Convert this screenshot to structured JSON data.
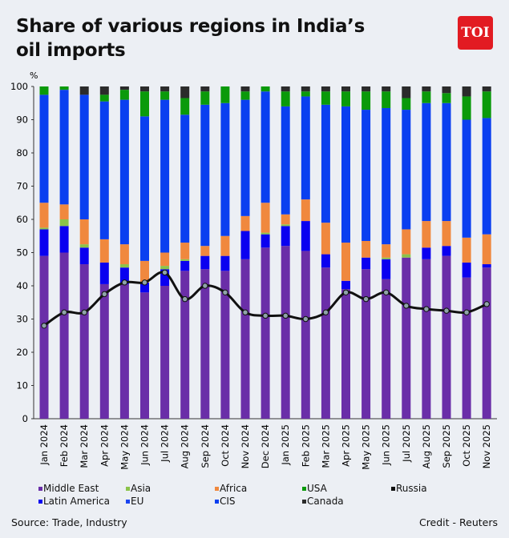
{
  "title": "Share of various regions in India’s oil imports",
  "logo_text": "TOI",
  "source": "Source: Trade, Industry",
  "credit": "Credit - Reuters",
  "chart_data": {
    "type": "bar",
    "stacked": true,
    "ylabel": "%",
    "ylim": [
      0,
      100
    ],
    "yticks": [
      0,
      10,
      20,
      30,
      40,
      50,
      60,
      70,
      80,
      90,
      100
    ],
    "grid": false,
    "legend_placement": "bottom",
    "categories": [
      "Jan 2024",
      "Feb 2024",
      "Mar 2024",
      "Apr 2024",
      "May 2024",
      "Jun 2024",
      "Jul 2024",
      "Aug 2024",
      "Sep 2024",
      "Oct 2024",
      "Nov 2024",
      "Dec 2024",
      "Jan 2025",
      "Feb 2025",
      "Mar 2025",
      "Apr 2025",
      "May 2025",
      "Jun 2025",
      "Jul 2025",
      "Aug 2025",
      "Sep 2025",
      "Oct 2025",
      "Nov 2025"
    ],
    "series": [
      {
        "name": "Middle East",
        "color": "#6a2ea8",
        "values": [
          49,
          50,
          46.5,
          40.5,
          40.5,
          38,
          40,
          44.5,
          45,
          44.5,
          48,
          51.5,
          52,
          50.5,
          45.5,
          39,
          45,
          42,
          48.5,
          48,
          49,
          42.5,
          45.5
        ]
      },
      {
        "name": "Latin America",
        "color": "#0a00f0",
        "values": [
          8,
          8,
          5,
          6.5,
          5,
          3,
          5,
          3,
          4,
          4.5,
          8.5,
          4,
          6,
          9,
          4,
          2.5,
          3.5,
          6,
          0,
          3.5,
          3,
          4.5,
          1
        ]
      },
      {
        "name": "Asia",
        "color": "#8bc34a",
        "values": [
          0.5,
          2,
          1,
          0,
          1,
          0,
          1,
          0.5,
          0,
          0,
          0,
          0.5,
          0.5,
          0,
          0,
          0,
          0,
          0.5,
          1,
          0,
          0,
          0,
          0
        ]
      },
      {
        "name": "Africa",
        "color": "#f0883e",
        "values": [
          7.5,
          4.5,
          7.5,
          7,
          6,
          6.5,
          4,
          5,
          3,
          6,
          4.5,
          9,
          3,
          6.5,
          9.5,
          11.5,
          5,
          4,
          7.5,
          8,
          7.5,
          7.5,
          9
        ]
      },
      {
        "name": "EU",
        "color": "#1a44f0",
        "values": [
          0,
          0,
          0,
          0,
          0,
          0,
          0,
          0,
          0,
          0,
          0,
          0,
          0,
          0,
          0,
          0,
          0,
          0,
          0,
          0,
          0,
          0,
          0
        ]
      },
      {
        "name": "CIS",
        "color": "#0a3ff0",
        "values": [
          32.5,
          34.5,
          37.5,
          41.5,
          43.5,
          43.5,
          46,
          38.5,
          42.5,
          40,
          35,
          33.5,
          32.5,
          31,
          35.5,
          41,
          39.5,
          41,
          36,
          35.5,
          35.5,
          35.5,
          35
        ]
      },
      {
        "name": "USA",
        "color": "#0a9a0a",
        "values": [
          2.5,
          1,
          0,
          2,
          3,
          7.5,
          2.5,
          5,
          4,
          5,
          2.5,
          1.5,
          4.5,
          1.5,
          4,
          4.5,
          5.5,
          5,
          3.5,
          3.5,
          3,
          7,
          8
        ]
      },
      {
        "name": "Canada",
        "color": "#2b2b2b",
        "values": [
          0,
          0,
          2.5,
          2.5,
          1,
          1.5,
          1.5,
          3.5,
          1.5,
          0,
          1.5,
          0,
          1.5,
          1.5,
          1.5,
          1.5,
          1.5,
          1.5,
          3.5,
          1.5,
          2,
          3,
          1.5
        ]
      }
    ],
    "line_series": {
      "name": "Russia",
      "color": "#111111",
      "values": [
        28,
        32,
        32,
        37.5,
        41,
        41,
        44,
        36,
        40,
        38,
        32,
        31,
        31,
        30,
        32,
        38,
        36,
        38,
        34,
        33,
        32.5,
        32,
        34.5
      ]
    },
    "legend": [
      {
        "name": "Middle East",
        "color": "#6a2ea8"
      },
      {
        "name": "Asia",
        "color": "#8bc34a"
      },
      {
        "name": "Africa",
        "color": "#f0883e"
      },
      {
        "name": "USA",
        "color": "#0a9a0a"
      },
      {
        "name": "Russia",
        "color": "#111111"
      },
      {
        "name": "Latin America",
        "color": "#0a00f0"
      },
      {
        "name": "EU",
        "color": "#1a44f0"
      },
      {
        "name": "CIS",
        "color": "#0a3ff0"
      },
      {
        "name": "Canada",
        "color": "#2b2b2b"
      }
    ]
  }
}
